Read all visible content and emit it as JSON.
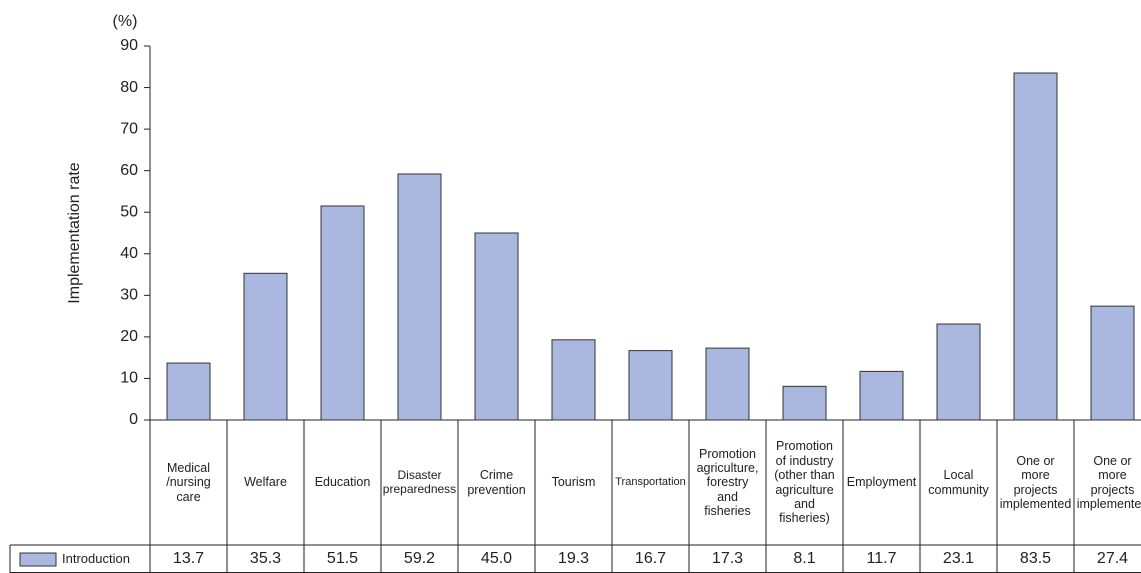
{
  "chart_data": {
    "type": "bar",
    "y_unit": "(%)",
    "y_label": "Implementation rate",
    "categories": [
      "Medical\n/nursing\ncare",
      "Welfare",
      "Education",
      "Disaster\npreparedness",
      "Crime\nprevention",
      "Tourism",
      "Transportation",
      "Promotion\nagriculture,\nforestry\nand\nfisheries",
      "Promotion\nof industry\n(other than\nagriculture\nand\nfisheries)",
      "Employment",
      "Local\ncommunity",
      "One or\nmore\nprojects\nimplemented",
      "One or\nmore\nprojects\nimplemented"
    ],
    "series": [
      {
        "name": "Introduction",
        "color": "#aab8e0",
        "values": [
          13.7,
          35.3,
          51.5,
          59.2,
          45.0,
          19.3,
          16.7,
          17.3,
          8.1,
          11.7,
          23.1,
          83.5,
          27.4
        ],
        "value_labels": [
          "13.7",
          "35.3",
          "51.5",
          "59.2",
          "45.0",
          "19.3",
          "16.7",
          "17.3",
          "8.1",
          "11.7",
          "23.1",
          "83.5",
          "27.4"
        ]
      }
    ],
    "ylim": [
      0,
      90
    ],
    "yticks": [
      0,
      10,
      20,
      30,
      40,
      50,
      60,
      70,
      80,
      90
    ]
  }
}
